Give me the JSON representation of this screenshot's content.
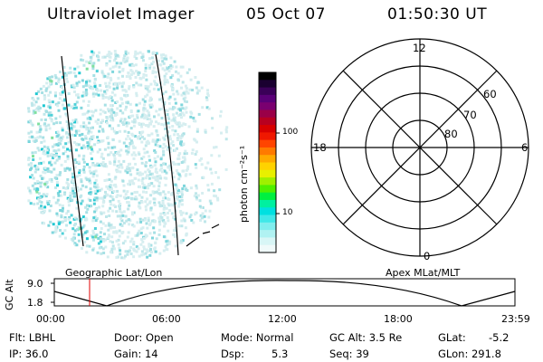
{
  "header": {
    "title": "Ultraviolet Imager",
    "date": "05 Oct 07",
    "time": "01:50:30 UT"
  },
  "left_panel": {
    "caption": "Geographic Lat/Lon"
  },
  "colorbar": {
    "unit_label": "photon cm⁻²s⁻¹",
    "ticks": [
      "100",
      "10"
    ],
    "colors": [
      "#000000",
      "#1a0030",
      "#3a0058",
      "#5a0078",
      "#7a0070",
      "#9a0048",
      "#b80020",
      "#d80000",
      "#f01800",
      "#ff4400",
      "#ff7a00",
      "#ffaa00",
      "#ffd200",
      "#e8f000",
      "#a0f000",
      "#50f000",
      "#00f040",
      "#00f0a0",
      "#00e0e0",
      "#40e8e8",
      "#80eeee",
      "#b0f2f2",
      "#d8f6f6",
      "#f0fafa"
    ]
  },
  "polar_panel": {
    "caption": "Apex MLat/MLT",
    "mlt_labels": {
      "top": "12",
      "bottom": "0",
      "left": "18",
      "right": "6"
    },
    "lat_labels": [
      "60",
      "70",
      "80"
    ]
  },
  "altitude_strip": {
    "axis_label": "GC Alt",
    "y_ticks": [
      "9.0",
      "1.8"
    ],
    "x_ticks": [
      "00:00",
      "06:00",
      "12:00",
      "18:00",
      "23:59"
    ],
    "current_time_hours": 1.84
  },
  "info": {
    "row1": [
      "Flt: LBHL",
      "Door: Open",
      "Mode: Normal",
      "GC Alt: 3.5 Re",
      "GLat:",
      "-5.2"
    ],
    "row2": [
      "IP: 36.0",
      "Gain: 14",
      "Dsp:",
      "5.3",
      "Seq: 39",
      "GLon: 291.8"
    ]
  }
}
